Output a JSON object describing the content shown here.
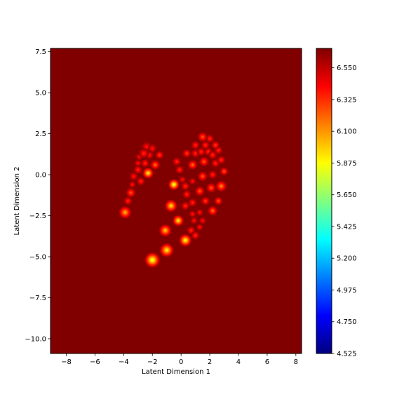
{
  "chart_data": {
    "type": "heatmap",
    "title": "",
    "xlabel": "Latent Dimension 1",
    "ylabel": "Latent Dimension 2",
    "xlim": [
      -9.1,
      8.4
    ],
    "ylim": [
      -10.9,
      7.7
    ],
    "x_ticks": [
      -8,
      -6,
      -4,
      -2,
      0,
      2,
      4,
      6,
      8
    ],
    "x_tick_labels": [
      "−8",
      "−6",
      "−4",
      "−2",
      "0",
      "2",
      "4",
      "6",
      "8"
    ],
    "y_ticks": [
      7.5,
      5.0,
      2.5,
      0.0,
      -2.5,
      -5.0,
      -7.5,
      -10.0
    ],
    "y_tick_labels": [
      "7.5",
      "5.0",
      "2.5",
      "0.0",
      "−2.5",
      "−5.0",
      "−7.5",
      "−10.0"
    ],
    "colormap": "jet",
    "background_color": "#800000",
    "colorbar": {
      "vmin": 4.525,
      "vmax": 6.6875,
      "ticks": [
        4.525,
        4.75,
        4.975,
        5.2,
        5.425,
        5.65,
        5.875,
        6.1,
        6.325,
        6.55
      ],
      "tick_labels": [
        "4.525",
        "4.750",
        "4.975",
        "5.200",
        "5.425",
        "5.650",
        "5.875",
        "6.100",
        "6.325",
        "6.550"
      ]
    },
    "points": [
      {
        "x": -2.0,
        "y": -5.2,
        "value": 5.75,
        "spread": 0.55
      },
      {
        "x": -1.0,
        "y": -4.6,
        "value": 5.85,
        "spread": 0.5
      },
      {
        "x": 0.3,
        "y": -4.0,
        "value": 5.8,
        "spread": 0.45
      },
      {
        "x": -1.1,
        "y": -3.4,
        "value": 5.95,
        "spread": 0.45
      },
      {
        "x": -0.2,
        "y": -2.8,
        "value": 5.85,
        "spread": 0.4
      },
      {
        "x": -3.9,
        "y": -2.3,
        "value": 6.0,
        "spread": 0.45
      },
      {
        "x": -0.7,
        "y": -1.9,
        "value": 5.9,
        "spread": 0.45
      },
      {
        "x": -0.5,
        "y": -0.6,
        "value": 5.75,
        "spread": 0.4
      },
      {
        "x": -2.3,
        "y": 0.1,
        "value": 5.85,
        "spread": 0.4
      },
      {
        "x": 0.3,
        "y": -1.9,
        "value": 6.3,
        "spread": 0.3
      },
      {
        "x": 0.8,
        "y": -2.4,
        "value": 6.35,
        "spread": 0.25
      },
      {
        "x": 1.3,
        "y": -2.3,
        "value": 6.35,
        "spread": 0.25
      },
      {
        "x": 2.2,
        "y": -2.2,
        "value": 6.15,
        "spread": 0.35
      },
      {
        "x": 0.9,
        "y": -2.8,
        "value": 6.35,
        "spread": 0.25
      },
      {
        "x": 1.5,
        "y": -2.8,
        "value": 6.35,
        "spread": 0.25
      },
      {
        "x": 1.3,
        "y": -3.2,
        "value": 6.35,
        "spread": 0.25
      },
      {
        "x": 0.7,
        "y": -3.4,
        "value": 6.3,
        "spread": 0.3
      },
      {
        "x": 1.0,
        "y": -3.7,
        "value": 6.3,
        "spread": 0.3
      },
      {
        "x": 0.4,
        "y": -1.2,
        "value": 6.3,
        "spread": 0.3
      },
      {
        "x": 0.8,
        "y": -1.7,
        "value": 6.3,
        "spread": 0.3
      },
      {
        "x": 1.7,
        "y": -1.6,
        "value": 6.25,
        "spread": 0.3
      },
      {
        "x": 2.6,
        "y": -1.6,
        "value": 6.2,
        "spread": 0.3
      },
      {
        "x": 1.3,
        "y": -1.0,
        "value": 6.2,
        "spread": 0.35
      },
      {
        "x": 2.1,
        "y": -0.8,
        "value": 6.2,
        "spread": 0.35
      },
      {
        "x": 2.8,
        "y": -0.7,
        "value": 6.1,
        "spread": 0.4
      },
      {
        "x": 0.3,
        "y": -0.7,
        "value": 6.3,
        "spread": 0.3
      },
      {
        "x": 0.8,
        "y": -0.4,
        "value": 6.35,
        "spread": 0.25
      },
      {
        "x": 0.1,
        "y": -0.3,
        "value": 6.35,
        "spread": 0.25
      },
      {
        "x": 1.5,
        "y": -0.1,
        "value": 6.2,
        "spread": 0.35
      },
      {
        "x": 2.2,
        "y": 0.0,
        "value": 6.3,
        "spread": 0.3
      },
      {
        "x": 3.0,
        "y": 0.2,
        "value": 6.2,
        "spread": 0.3
      },
      {
        "x": -0.1,
        "y": 0.3,
        "value": 6.3,
        "spread": 0.3
      },
      {
        "x": 0.8,
        "y": 0.6,
        "value": 6.15,
        "spread": 0.35
      },
      {
        "x": 1.6,
        "y": 0.8,
        "value": 6.2,
        "spread": 0.35
      },
      {
        "x": 2.4,
        "y": 0.7,
        "value": 6.3,
        "spread": 0.3
      },
      {
        "x": 2.8,
        "y": 0.9,
        "value": 6.3,
        "spread": 0.3
      },
      {
        "x": -0.3,
        "y": 0.8,
        "value": 6.3,
        "spread": 0.3
      },
      {
        "x": 0.4,
        "y": 1.3,
        "value": 6.25,
        "spread": 0.3
      },
      {
        "x": 1.0,
        "y": 1.3,
        "value": 6.3,
        "spread": 0.3
      },
      {
        "x": 1.4,
        "y": 1.4,
        "value": 6.3,
        "spread": 0.3
      },
      {
        "x": 1.9,
        "y": 1.4,
        "value": 6.3,
        "spread": 0.3
      },
      {
        "x": 2.2,
        "y": 1.2,
        "value": 6.3,
        "spread": 0.3
      },
      {
        "x": 2.6,
        "y": 1.5,
        "value": 6.3,
        "spread": 0.3
      },
      {
        "x": 1.0,
        "y": 1.8,
        "value": 6.3,
        "spread": 0.3
      },
      {
        "x": 1.7,
        "y": 1.8,
        "value": 6.3,
        "spread": 0.3
      },
      {
        "x": 2.4,
        "y": 1.8,
        "value": 6.25,
        "spread": 0.3
      },
      {
        "x": 1.5,
        "y": 2.3,
        "value": 6.2,
        "spread": 0.35
      },
      {
        "x": 2.0,
        "y": 2.2,
        "value": 6.3,
        "spread": 0.3
      },
      {
        "x": -2.4,
        "y": 1.7,
        "value": 6.35,
        "spread": 0.35
      },
      {
        "x": -2.6,
        "y": 1.3,
        "value": 6.3,
        "spread": 0.35
      },
      {
        "x": -2.2,
        "y": 1.2,
        "value": 6.35,
        "spread": 0.3
      },
      {
        "x": -2.0,
        "y": 1.6,
        "value": 6.35,
        "spread": 0.3
      },
      {
        "x": -1.5,
        "y": 1.2,
        "value": 6.25,
        "spread": 0.3
      },
      {
        "x": -2.9,
        "y": 1.1,
        "value": 6.35,
        "spread": 0.25
      },
      {
        "x": -3.0,
        "y": 0.7,
        "value": 6.35,
        "spread": 0.25
      },
      {
        "x": -2.5,
        "y": 0.7,
        "value": 6.3,
        "spread": 0.3
      },
      {
        "x": -1.8,
        "y": 0.6,
        "value": 6.15,
        "spread": 0.35
      },
      {
        "x": -3.0,
        "y": 0.3,
        "value": 6.3,
        "spread": 0.3
      },
      {
        "x": -3.3,
        "y": -0.1,
        "value": 6.35,
        "spread": 0.3
      },
      {
        "x": -2.8,
        "y": -0.4,
        "value": 6.3,
        "spread": 0.3
      },
      {
        "x": -3.4,
        "y": -0.6,
        "value": 6.35,
        "spread": 0.25
      },
      {
        "x": -3.5,
        "y": -1.1,
        "value": 6.2,
        "spread": 0.35
      },
      {
        "x": -3.7,
        "y": -1.6,
        "value": 6.3,
        "spread": 0.3
      }
    ]
  }
}
